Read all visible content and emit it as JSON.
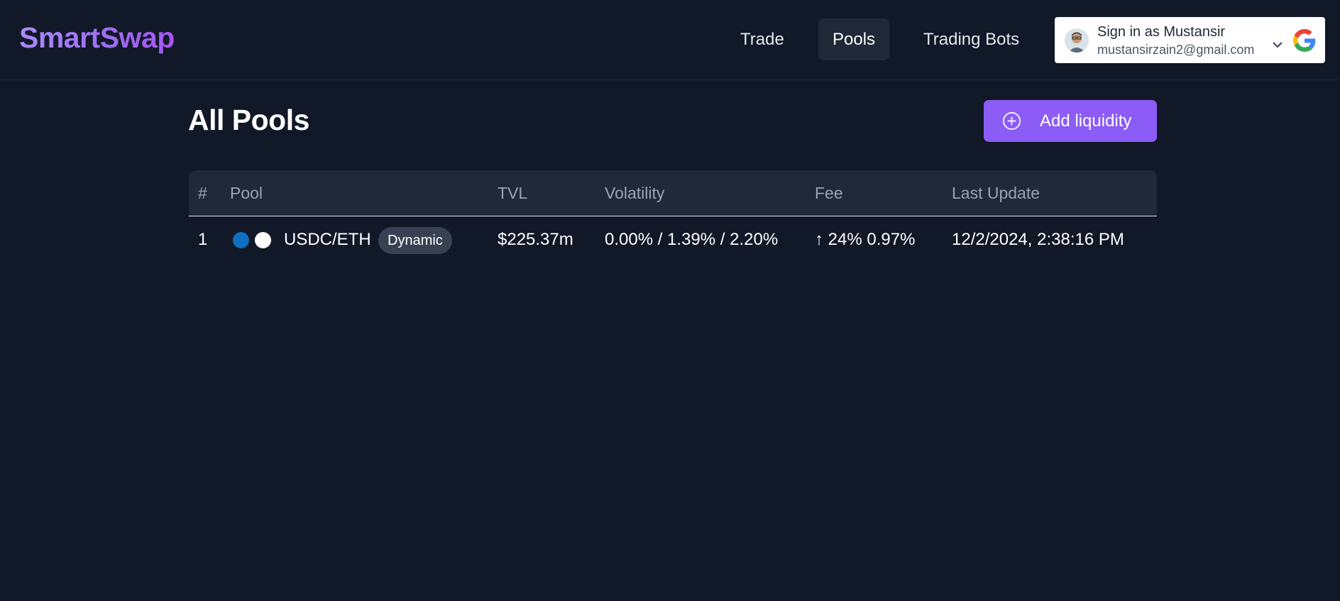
{
  "app": {
    "logo": "SmartSwap"
  },
  "nav": {
    "items": [
      {
        "label": "Trade"
      },
      {
        "label": "Pools",
        "active": true
      },
      {
        "label": "Trading Bots"
      }
    ]
  },
  "signin": {
    "title": "Sign in as Mustansir",
    "email": "mustansirzain2@gmail.com",
    "icons": [
      "avatar",
      "chevron-down-icon",
      "google-icon"
    ]
  },
  "page": {
    "title": "All Pools",
    "add_button": {
      "label": "Add liquidity",
      "icon": "plus-circle-icon"
    }
  },
  "table": {
    "headers": [
      "#",
      "Pool",
      "TVL",
      "Volatility",
      "Fee",
      "Last Update"
    ],
    "rows": [
      {
        "index": "1",
        "token_colors": [
          "#0e6fc0",
          "#ffffff"
        ],
        "pool": "USDC/ETH",
        "badge": "Dynamic",
        "tvl": "$225.37m",
        "volatility": "0.00% / 1.39% / 2.20%",
        "fee": "↑ 24% 0.97%",
        "last_update": "12/2/2024, 2:38:16 PM"
      }
    ]
  },
  "colors": {
    "background": "#111827",
    "accent": "#8b5cf6",
    "header_row": "#1f2937"
  }
}
